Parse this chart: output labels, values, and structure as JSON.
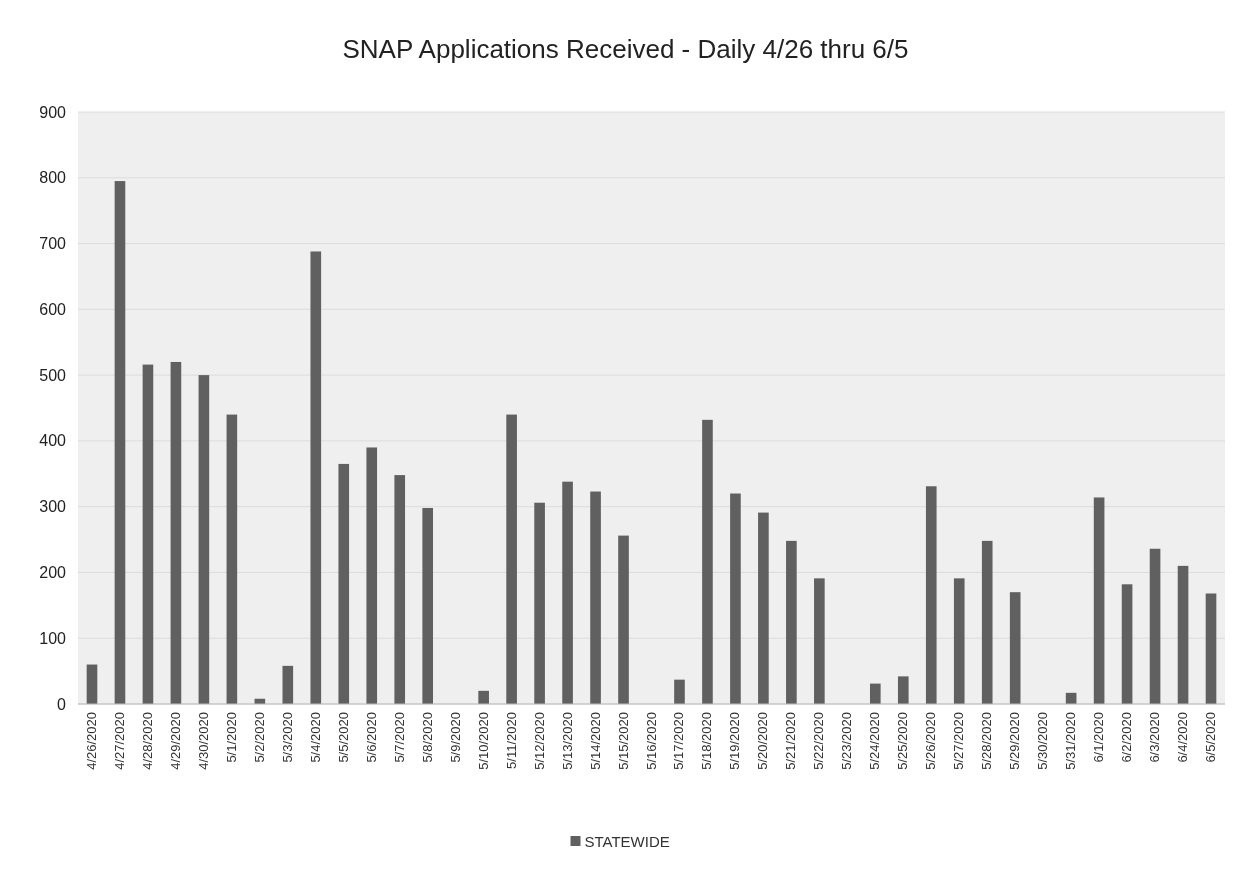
{
  "chart_data": {
    "type": "bar",
    "title": "SNAP Applications Received - Daily 4/26 thru 6/5",
    "categories": [
      "4/26/2020",
      "4/27/2020",
      "4/28/2020",
      "4/29/2020",
      "4/30/2020",
      "5/1/2020",
      "5/2/2020",
      "5/3/2020",
      "5/4/2020",
      "5/5/2020",
      "5/6/2020",
      "5/7/2020",
      "5/8/2020",
      "5/9/2020",
      "5/10/2020",
      "5/11/2020",
      "5/12/2020",
      "5/13/2020",
      "5/14/2020",
      "5/15/2020",
      "5/16/2020",
      "5/17/2020",
      "5/18/2020",
      "5/19/2020",
      "5/20/2020",
      "5/21/2020",
      "5/22/2020",
      "5/23/2020",
      "5/24/2020",
      "5/25/2020",
      "5/26/2020",
      "5/27/2020",
      "5/28/2020",
      "5/29/2020",
      "5/30/2020",
      "5/31/2020",
      "6/1/2020",
      "6/2/2020",
      "6/3/2020",
      "6/4/2020",
      "6/5/2020"
    ],
    "series": [
      {
        "name": "STATEWIDE",
        "color": "#606060",
        "values": [
          60,
          795,
          516,
          520,
          500,
          440,
          8,
          58,
          688,
          365,
          390,
          348,
          298,
          0,
          20,
          440,
          306,
          338,
          323,
          256,
          0,
          37,
          432,
          320,
          291,
          248,
          191,
          0,
          31,
          42,
          331,
          191,
          248,
          170,
          0,
          17,
          314,
          182,
          236,
          210,
          168
        ]
      }
    ],
    "ylim": [
      0,
      900
    ],
    "yticks": [
      0,
      100,
      200,
      300,
      400,
      500,
      600,
      700,
      800,
      900
    ],
    "grid": "y",
    "legend": "bottom"
  }
}
